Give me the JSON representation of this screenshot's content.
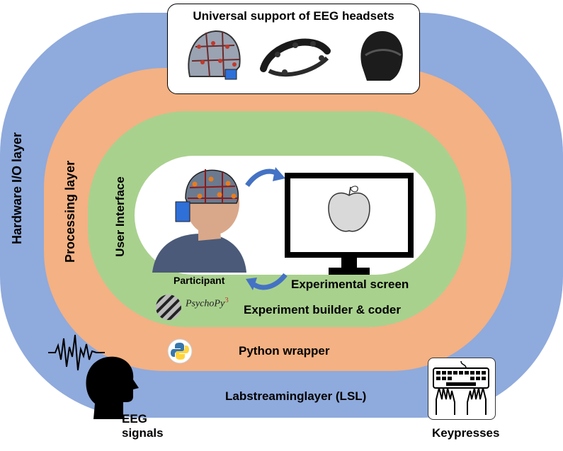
{
  "colors": {
    "hardware_ring": "#8faadc",
    "processing_ring": "#f4b183",
    "ui_ring": "#a9d18e",
    "center": "#ffffff",
    "arrow": "#4472c4"
  },
  "headsets": {
    "title": "Universal support of EEG headsets",
    "icons": [
      "eeg-cap-icon",
      "emotiv-headset-icon",
      "dry-headset-icon"
    ]
  },
  "layers": {
    "hardware": "Hardware I/O layer",
    "processing": "Processing layer",
    "ui": "User Interface"
  },
  "center": {
    "participant": "Participant",
    "experimental_screen": "Experimental screen"
  },
  "psychopy": {
    "name": "PsychoPy",
    "version": "3",
    "caption": "Experiment builder & coder"
  },
  "python": {
    "caption": "Python wrapper"
  },
  "lsl": {
    "caption": "Labstreaminglayer (LSL)"
  },
  "eeg": {
    "line1": "EEG",
    "line2": "signals"
  },
  "keyboard": {
    "caption": "Keypresses"
  }
}
